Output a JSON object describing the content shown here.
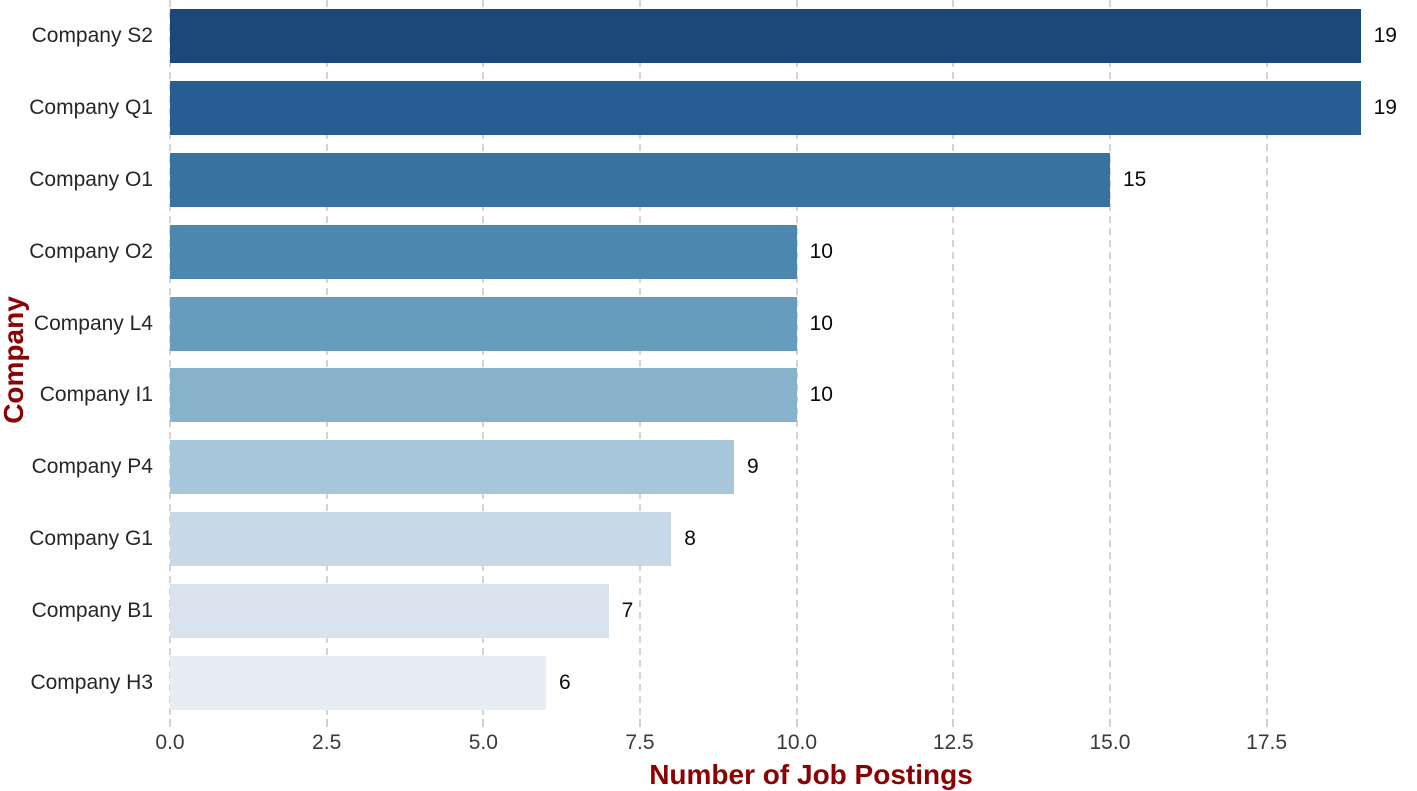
{
  "figure": {
    "background_color": "#ffffff",
    "axis_title_color": "#8B0000",
    "tick_label_color": "#3a3a3a",
    "category_label_color": "#262626",
    "value_label_color": "#0a0a0a",
    "gridline_color": "#d4d4d4"
  },
  "chart_data": {
    "type": "bar",
    "orientation": "horizontal",
    "title": "",
    "xlabel": "Number of Job Postings",
    "ylabel": "Company",
    "categories": [
      "Company S2",
      "Company Q1",
      "Company O1",
      "Company O2",
      "Company L4",
      "Company I1",
      "Company P4",
      "Company G1",
      "Company B1",
      "Company H3"
    ],
    "values": [
      19,
      19,
      15,
      10,
      10,
      10,
      9,
      8,
      7,
      6
    ],
    "value_labels": [
      "19",
      "19",
      "15",
      "10",
      "10",
      "10",
      "9",
      "8",
      "7",
      "6"
    ],
    "bar_colors": [
      "#1b4878",
      "#275d92",
      "#3773a0",
      "#4c88ad",
      "#679cbc",
      "#88b1cc",
      "#a8c6d9",
      "#c7d8e6",
      "#d9e3ee",
      "#e6edf4"
    ],
    "xlim": [
      0,
      19.9
    ],
    "xticks": [
      0,
      2.5,
      5,
      7.5,
      10,
      12.5,
      15,
      17.5
    ],
    "xtick_labels": [
      "0.0",
      "2.5",
      "5.0",
      "7.5",
      "10.0",
      "12.5",
      "15.0",
      "17.5"
    ],
    "grid": "vertical-dashed",
    "legend": "none"
  }
}
